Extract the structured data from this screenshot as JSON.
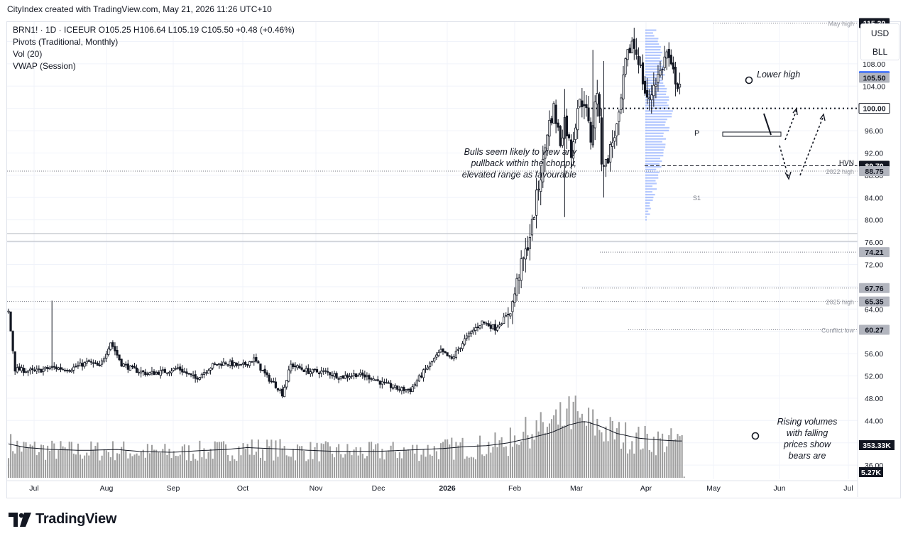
{
  "header": {
    "credit": "CityIndex created with TradingView.com, May 21, 2026 11:26 UTC+10"
  },
  "legend": {
    "line1": "BRN1! · 1D · ICEEUR  O105.25  H106.64  L105.19  C105.50  +0.48 (+0.46%)",
    "line2": "Pivots (Traditional, Monthly)",
    "line3": "Vol (20)",
    "line4": "VWAP (Session)"
  },
  "currency": {
    "unit": "USD",
    "sub": "BLL"
  },
  "footer": {
    "brand": "TradingView"
  },
  "colors": {
    "up": "#131722",
    "down": "#131722",
    "volume": "#9e9e9e",
    "vwap": "#131722",
    "last_price": "#2962ff",
    "label_dark": "#131722",
    "label_gray": "#787b86",
    "profile": "#2962ff"
  },
  "chart_data": {
    "type": "candlestick",
    "symbol": "BRN1!",
    "timeframe": "1D",
    "exchange": "ICEEUR",
    "y_axis": {
      "ticks": [
        36.0,
        40.0,
        44.0,
        48.0,
        52.0,
        56.0,
        60.0,
        64.0,
        68.0,
        72.0,
        76.0,
        80.0,
        84.0,
        88.0,
        92.0,
        96.0,
        100.0,
        104.0,
        108.0,
        112.0
      ],
      "tick_labels": [
        "36.00",
        "40.00",
        "44.00",
        "48.00",
        "52.00",
        "56.00",
        "60.00",
        "64.00",
        "68.00",
        "72.00",
        "76.00",
        "80.00",
        "84.00",
        "88.00",
        "92.00",
        "96.00",
        "100.00",
        "104.00",
        "108.00",
        "112.00"
      ],
      "range": [
        33.4,
        117.6
      ]
    },
    "x_axis": {
      "labels": [
        "Jul",
        "Aug",
        "Sep",
        "Oct",
        "Nov",
        "Dec",
        "2026",
        "Feb",
        "Mar",
        "Apr",
        "May",
        "Jun",
        "Jul"
      ],
      "bold_labels": [
        "2026"
      ]
    },
    "last_price": 105.78,
    "price_labels": [
      {
        "value": 115.3,
        "text": "115.30",
        "style": "dark"
      },
      {
        "value": 105.78,
        "text": "105.78",
        "style": "blue"
      },
      {
        "value": 105.5,
        "text": "105.50",
        "style": "gray"
      },
      {
        "value": 100.0,
        "text": "100.00",
        "style": "white"
      },
      {
        "value": 89.7,
        "text": "89.70",
        "style": "dark"
      },
      {
        "value": 88.75,
        "text": "88.75",
        "style": "gray"
      },
      {
        "value": 74.21,
        "text": "74.21",
        "style": "gray"
      },
      {
        "value": 67.76,
        "text": "67.76",
        "style": "gray"
      },
      {
        "value": 65.35,
        "text": "65.35",
        "style": "gray"
      },
      {
        "value": 60.27,
        "text": "60.27",
        "style": "gray"
      }
    ],
    "volume_labels": [
      {
        "text": "353.33K",
        "style": "dark"
      },
      {
        "text": "5.27K",
        "style": "dark"
      }
    ],
    "level_lines": [
      {
        "value": 115.3,
        "label": "May high"
      },
      {
        "value": 88.75,
        "label": "2022 high"
      },
      {
        "value": 65.35,
        "label": "2025 high"
      },
      {
        "value": 60.27,
        "label": "Conflict low"
      },
      {
        "value": 89.7,
        "label": "HVN"
      },
      {
        "value": 100.0,
        "label": ""
      },
      {
        "value": 74.21,
        "label": ""
      },
      {
        "value": 67.76,
        "label": ""
      }
    ],
    "pivot_marker": "P",
    "pivot_marker2": "S1",
    "annotations": {
      "bulls": [
        "Bulls seem likely to view any",
        "pullback within the choppy,",
        "elevated range as favourable"
      ],
      "lower_high": "Lower high",
      "volumes": [
        "Rising volumes",
        "with falling",
        "prices show",
        "bears are"
      ]
    },
    "close_path": [
      [
        0,
        63.5
      ],
      [
        3,
        53.2
      ],
      [
        12,
        52.8
      ],
      [
        20,
        53.5
      ],
      [
        28,
        53.2
      ],
      [
        37,
        54.5
      ],
      [
        42,
        53.6
      ],
      [
        47,
        58.1
      ],
      [
        52,
        54.2
      ],
      [
        57,
        53.2
      ],
      [
        64,
        52.4
      ],
      [
        72,
        52.8
      ],
      [
        78,
        53.4
      ],
      [
        86,
        51.5
      ],
      [
        94,
        53.9
      ],
      [
        100,
        54.4
      ],
      [
        107,
        53.7
      ],
      [
        113,
        55.0
      ],
      [
        119,
        51.8
      ],
      [
        124,
        49.9
      ],
      [
        126,
        48.8
      ],
      [
        130,
        54.0
      ],
      [
        138,
        52.8
      ],
      [
        146,
        52.7
      ],
      [
        153,
        51.8
      ],
      [
        160,
        52.3
      ],
      [
        167,
        51.7
      ],
      [
        173,
        50.5
      ],
      [
        180,
        49.6
      ],
      [
        185,
        49.5
      ],
      [
        188,
        51.1
      ],
      [
        192,
        53.2
      ],
      [
        199,
        56.4
      ],
      [
        204,
        55.0
      ],
      [
        210,
        58.5
      ],
      [
        214,
        60.2
      ],
      [
        218,
        61.7
      ],
      [
        224,
        60.6
      ],
      [
        229,
        62.6
      ],
      [
        232,
        65.0
      ],
      [
        235,
        70.5
      ],
      [
        238,
        74.0
      ],
      [
        241,
        79.0
      ],
      [
        243,
        84.0
      ],
      [
        246,
        90.0
      ],
      [
        248,
        96.0
      ],
      [
        251,
        100.0
      ],
      [
        254,
        94.0
      ],
      [
        256,
        98.0
      ],
      [
        259,
        92.0
      ],
      [
        262,
        100.5
      ],
      [
        265,
        101.5
      ],
      [
        268,
        94.5
      ],
      [
        271,
        103.5
      ],
      [
        273,
        91.0
      ],
      [
        275,
        90.0
      ],
      [
        278,
        94.0
      ],
      [
        281,
        98.0
      ],
      [
        284,
        108.0
      ],
      [
        287,
        112.0
      ],
      [
        290,
        109.0
      ],
      [
        293,
        103.0
      ],
      [
        295,
        101.0
      ],
      [
        297,
        104.5
      ],
      [
        300,
        106.5
      ],
      [
        303,
        110.0
      ],
      [
        305,
        107.0
      ],
      [
        308,
        104.5
      ]
    ],
    "volume_range": [
      0,
      95
    ],
    "volume_path": [
      [
        0,
        36
      ],
      [
        8,
        32
      ],
      [
        20,
        30
      ],
      [
        35,
        29
      ],
      [
        50,
        30
      ],
      [
        60,
        28
      ],
      [
        75,
        27
      ],
      [
        90,
        29
      ],
      [
        100,
        30
      ],
      [
        110,
        32
      ],
      [
        120,
        31
      ],
      [
        130,
        30
      ],
      [
        140,
        29
      ],
      [
        150,
        28
      ],
      [
        160,
        28
      ],
      [
        170,
        28
      ],
      [
        180,
        29
      ],
      [
        190,
        30
      ],
      [
        200,
        31
      ],
      [
        210,
        33
      ],
      [
        220,
        34
      ],
      [
        230,
        37
      ],
      [
        240,
        42
      ],
      [
        250,
        48
      ],
      [
        258,
        56
      ],
      [
        265,
        60
      ],
      [
        272,
        55
      ],
      [
        280,
        47
      ],
      [
        290,
        42
      ],
      [
        300,
        40
      ],
      [
        308,
        39
      ]
    ],
    "volume_annotated_bar": 308
  }
}
